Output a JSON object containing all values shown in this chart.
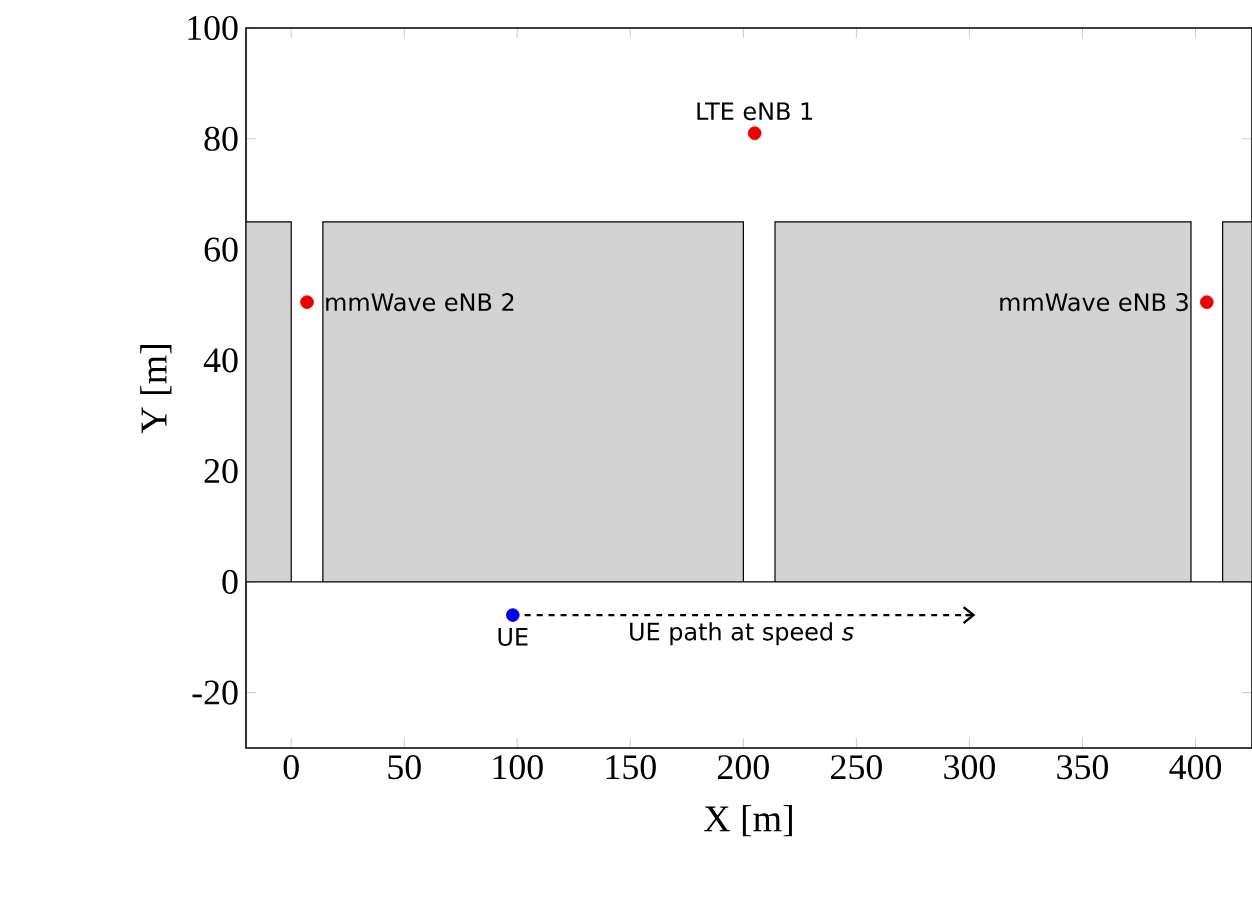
{
  "chart_data": {
    "type": "scatter",
    "xlabel": "X [m]",
    "ylabel": "Y [m]",
    "xlim": [
      -20,
      425
    ],
    "ylim": [
      -30,
      100
    ],
    "xticks": [
      0,
      50,
      100,
      150,
      200,
      250,
      300,
      350,
      400
    ],
    "yticks": [
      -20,
      0,
      20,
      40,
      60,
      80,
      100
    ],
    "series": [
      {
        "type": "area",
        "marker": "none",
        "color": "#d3d3d3",
        "x": [
          -20,
          0,
          0,
          14,
          14,
          200,
          200,
          214,
          214,
          398,
          398,
          412,
          412,
          425
        ],
        "values": [
          65,
          65,
          0,
          0,
          65,
          65,
          0,
          0,
          65,
          65,
          0,
          0,
          65,
          65
        ]
      },
      {
        "name": "LTE eNB 1",
        "marker": "circle",
        "color": "#ee0000",
        "x": [
          205
        ],
        "values": [
          81
        ]
      },
      {
        "name": "mmWave eNB 2",
        "marker": "circle",
        "color": "#ee0000",
        "x": [
          7
        ],
        "values": [
          50.5
        ]
      },
      {
        "name": "mmWave eNB 3",
        "marker": "circle",
        "color": "#ee0000",
        "x": [
          405
        ],
        "values": [
          50.5
        ]
      },
      {
        "name": "UE",
        "marker": "circle",
        "color": "#0000ee",
        "x": [
          98
        ],
        "values": [
          -6
        ]
      },
      {
        "type": "line",
        "name": "UE path at speed *s*",
        "color": "#000000",
        "line_style": "dashed",
        "x": [
          98,
          300
        ],
        "values": [
          -6,
          -6
        ]
      }
    ]
  }
}
